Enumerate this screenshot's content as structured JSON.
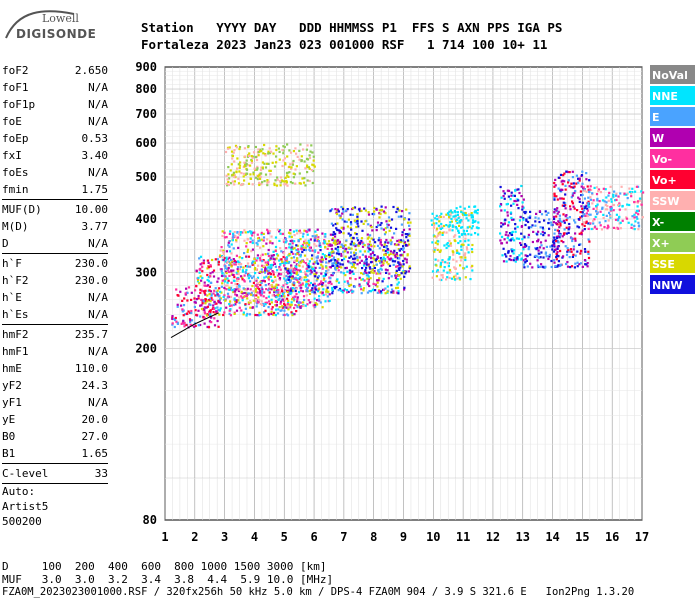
{
  "logo": {
    "line1": "Lowell",
    "line2": "DIGISONDE"
  },
  "header": {
    "labels": "Station   YYYY DAY   DDD HHMMSS P1  FFS S AXN PPS IGA PS",
    "values": "Fortaleza 2023 Jan23 023 001000 RSF   1 714 100 10+ 11"
  },
  "params": [
    {
      "label": "foF2",
      "value": "2.650"
    },
    {
      "label": "foF1",
      "value": "N/A"
    },
    {
      "label": "foF1p",
      "value": "N/A"
    },
    {
      "label": "foE",
      "value": "N/A"
    },
    {
      "label": "foEp",
      "value": "0.53"
    },
    {
      "label": "fxI",
      "value": "3.40"
    },
    {
      "label": "foEs",
      "value": "N/A"
    },
    {
      "label": "fmin",
      "value": "1.75"
    },
    {
      "sep": true
    },
    {
      "label": "MUF(D)",
      "value": "10.00"
    },
    {
      "label": "M(D)",
      "value": "3.77"
    },
    {
      "label": "D",
      "value": "N/A"
    },
    {
      "sep": true
    },
    {
      "label": "h`F",
      "value": "230.0"
    },
    {
      "label": "h`F2",
      "value": "230.0"
    },
    {
      "label": "h`E",
      "value": "N/A"
    },
    {
      "label": "h`Es",
      "value": "N/A"
    },
    {
      "sep": true
    },
    {
      "label": "hmF2",
      "value": "235.7"
    },
    {
      "label": "hmF1",
      "value": "N/A"
    },
    {
      "label": "hmE",
      "value": "110.0"
    },
    {
      "label": "yF2",
      "value": "24.3"
    },
    {
      "label": "yF1",
      "value": "N/A"
    },
    {
      "label": "yE",
      "value": "20.0"
    },
    {
      "label": "B0",
      "value": "27.0"
    },
    {
      "label": "B1",
      "value": "1.65"
    },
    {
      "sep": true
    },
    {
      "label": "C-level",
      "value": "33"
    },
    {
      "sep": true
    }
  ],
  "auto": {
    "line1": "Auto:",
    "line2": "Artist5",
    "line3": "500200"
  },
  "footer": {
    "d_row": "D     100  200  400  600  800 1000 1500 3000 [km]",
    "muf_row": "MUF   3.0  3.0  3.2  3.4  3.8  4.4  5.9 10.0 [MHz]",
    "file_row": "FZA0M_2023023001000.RSF / 320fx256h 50 kHz 5.0 km / DPS-4 FZA0M 904 / 3.9 S 321.6 E   Ion2Png 1.3.20"
  },
  "legend": [
    {
      "label": "NoVal",
      "color": "#888888"
    },
    {
      "label": "NNE",
      "color": "#00e5ff"
    },
    {
      "label": "E",
      "color": "#4aa3ff"
    },
    {
      "label": "W",
      "color": "#b000b0"
    },
    {
      "label": "Vo-",
      "color": "#ff2fa0"
    },
    {
      "label": "Vo+",
      "color": "#ff0030"
    },
    {
      "label": "SSW",
      "color": "#ffb0b0"
    },
    {
      "label": "X-",
      "color": "#008000"
    },
    {
      "label": "X+",
      "color": "#8fcc55"
    },
    {
      "label": "SSE",
      "color": "#d8d800"
    },
    {
      "label": "NNW",
      "color": "#1010dd"
    }
  ],
  "chart_data": {
    "type": "scatter",
    "x": {
      "min": 1,
      "max": 17,
      "ticks": [
        "1",
        "2",
        "3",
        "4",
        "5",
        "6",
        "7",
        "8",
        "9",
        "10",
        "11",
        "12",
        "13",
        "14",
        "15",
        "16",
        "17"
      ],
      "unit": "MHz"
    },
    "y": {
      "min": 80,
      "max": 900,
      "ticks": [
        "80",
        "200",
        "300",
        "400",
        "500",
        "600",
        "700",
        "800",
        "900"
      ],
      "unit": "km",
      "scale": "log"
    },
    "grid": true,
    "legend_position": "right",
    "regions": [
      {
        "f": [
          1.2,
          2.8
        ],
        "h": [
          225,
          280
        ],
        "colors": [
          "Vo-",
          "Vo+",
          "W",
          "E"
        ]
      },
      {
        "f": [
          2.0,
          5.5
        ],
        "h": [
          240,
          330
        ],
        "colors": [
          "Vo-",
          "Vo+",
          "W",
          "E",
          "NNE",
          "SSE"
        ]
      },
      {
        "f": [
          2.8,
          6.5
        ],
        "h": [
          250,
          380
        ],
        "colors": [
          "Vo-",
          "W",
          "E",
          "NNE",
          "SSE",
          "SSW"
        ]
      },
      {
        "f": [
          5.0,
          9.0
        ],
        "h": [
          270,
          360
        ],
        "colors": [
          "W",
          "Vo-",
          "E",
          "NNE",
          "SSE",
          "NNW"
        ]
      },
      {
        "f": [
          6.5,
          9.2
        ],
        "h": [
          300,
          430
        ],
        "colors": [
          "NNW",
          "W",
          "E",
          "SSE"
        ]
      },
      {
        "f": [
          3.0,
          6.0
        ],
        "h": [
          480,
          600
        ],
        "colors": [
          "SSE",
          "SSW",
          "X+"
        ]
      },
      {
        "f": [
          9.9,
          11.3
        ],
        "h": [
          290,
          420
        ],
        "colors": [
          "SSE",
          "NNE",
          "SSW"
        ]
      },
      {
        "f": [
          10.5,
          11.5
        ],
        "h": [
          370,
          430
        ],
        "colors": [
          "NNE"
        ]
      },
      {
        "f": [
          12.2,
          13.0
        ],
        "h": [
          320,
          480
        ],
        "colors": [
          "NNW",
          "NNE",
          "W"
        ]
      },
      {
        "f": [
          13.0,
          14.2
        ],
        "h": [
          310,
          420
        ],
        "colors": [
          "NNW",
          "W",
          "E"
        ]
      },
      {
        "f": [
          14.0,
          15.2
        ],
        "h": [
          310,
          520
        ],
        "colors": [
          "NNW",
          "E",
          "W",
          "Vo+"
        ]
      },
      {
        "f": [
          15.0,
          17.0
        ],
        "h": [
          380,
          480
        ],
        "colors": [
          "E",
          "NNE",
          "SSW",
          "Vo-"
        ]
      }
    ],
    "fit_curve": [
      [
        1.2,
        212
      ],
      [
        2.0,
        228
      ],
      [
        2.8,
        242
      ]
    ]
  }
}
